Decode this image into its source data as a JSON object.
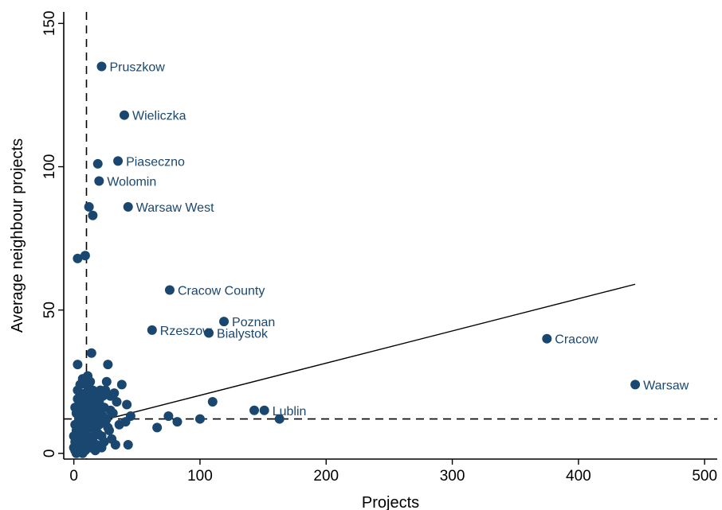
{
  "chart_data": {
    "type": "scatter",
    "title": "",
    "xlabel": "Projects",
    "ylabel": "Average neighbour projects",
    "xlim": [
      -8,
      510
    ],
    "ylim": [
      -2,
      154
    ],
    "x_ticks": [
      0,
      100,
      200,
      300,
      400,
      500
    ],
    "y_ticks": [
      0,
      50,
      100,
      150
    ],
    "grid": false,
    "marker_color": "#1a476f",
    "reference_lines": {
      "x": 10,
      "y": 12
    },
    "fit_line": {
      "x0": 0,
      "y0": 9,
      "x1": 445,
      "y1": 59
    },
    "labeled_points": [
      {
        "label": "Pruszkow",
        "x": 22,
        "y": 135
      },
      {
        "label": "Wieliczka",
        "x": 40,
        "y": 118
      },
      {
        "label": "Piaseczno",
        "x": 35,
        "y": 102
      },
      {
        "label": "Wolomin",
        "x": 20,
        "y": 95
      },
      {
        "label": "Warsaw West",
        "x": 43,
        "y": 86
      },
      {
        "label": "Cracow County",
        "x": 76,
        "y": 57
      },
      {
        "label": "Poznan",
        "x": 119,
        "y": 46
      },
      {
        "label": "Rzeszow",
        "x": 62,
        "y": 43
      },
      {
        "label": "Bialystok",
        "x": 107,
        "y": 42
      },
      {
        "label": "Cracow",
        "x": 375,
        "y": 40
      },
      {
        "label": "Warsaw",
        "x": 445,
        "y": 24
      },
      {
        "label": "Lublin",
        "x": 151,
        "y": 15
      }
    ],
    "points": [
      [
        19,
        101
      ],
      [
        12,
        86
      ],
      [
        15,
        83
      ],
      [
        3,
        68
      ],
      [
        9,
        69
      ],
      [
        3,
        31
      ],
      [
        14,
        35
      ],
      [
        27,
        31
      ],
      [
        38,
        24
      ],
      [
        42,
        17
      ],
      [
        32,
        21
      ],
      [
        26,
        25
      ],
      [
        24,
        16
      ],
      [
        29,
        15
      ],
      [
        45,
        13
      ],
      [
        41,
        11
      ],
      [
        36,
        10
      ],
      [
        33,
        3
      ],
      [
        43,
        3
      ],
      [
        66,
        9
      ],
      [
        75,
        13
      ],
      [
        82,
        11
      ],
      [
        100,
        12
      ],
      [
        110,
        18
      ],
      [
        143,
        15
      ],
      [
        163,
        12
      ],
      [
        1,
        1
      ],
      [
        2,
        3
      ],
      [
        3,
        5
      ],
      [
        4,
        7
      ],
      [
        5,
        9
      ],
      [
        6,
        11
      ],
      [
        7,
        13
      ],
      [
        8,
        15
      ],
      [
        9,
        17
      ],
      [
        10,
        19
      ],
      [
        11,
        21
      ],
      [
        12,
        23
      ],
      [
        13,
        25
      ],
      [
        2,
        8
      ],
      [
        4,
        12
      ],
      [
        6,
        16
      ],
      [
        8,
        20
      ],
      [
        10,
        24
      ],
      [
        3,
        22
      ],
      [
        5,
        18
      ],
      [
        7,
        14
      ],
      [
        9,
        10
      ],
      [
        11,
        6
      ],
      [
        13,
        2
      ],
      [
        15,
        4
      ],
      [
        17,
        8
      ],
      [
        19,
        12
      ],
      [
        21,
        16
      ],
      [
        23,
        20
      ],
      [
        25,
        22
      ],
      [
        16,
        18
      ],
      [
        18,
        14
      ],
      [
        20,
        10
      ],
      [
        22,
        6
      ],
      [
        24,
        4
      ],
      [
        14,
        12
      ],
      [
        12,
        16
      ],
      [
        10,
        9
      ],
      [
        8,
        5
      ],
      [
        6,
        2
      ],
      [
        4,
        4
      ],
      [
        2,
        14
      ],
      [
        1,
        10
      ],
      [
        0,
        6
      ],
      [
        0,
        2
      ],
      [
        1,
        16
      ],
      [
        3,
        19
      ],
      [
        5,
        24
      ],
      [
        7,
        26
      ],
      [
        9,
        26
      ],
      [
        11,
        27
      ],
      [
        15,
        22
      ],
      [
        17,
        20
      ],
      [
        19,
        19
      ],
      [
        21,
        22
      ],
      [
        26,
        12
      ],
      [
        28,
        8
      ],
      [
        30,
        5
      ],
      [
        18,
        3
      ],
      [
        16,
        6
      ],
      [
        14,
        9
      ],
      [
        12,
        11
      ],
      [
        10,
        13
      ],
      [
        8,
        11
      ],
      [
        6,
        7
      ],
      [
        4,
        1
      ],
      [
        2,
        0
      ],
      [
        7,
        0
      ],
      [
        9,
        1
      ],
      [
        11,
        3
      ],
      [
        13,
        5
      ],
      [
        15,
        14
      ],
      [
        17,
        16
      ],
      [
        20,
        18
      ],
      [
        23,
        13
      ],
      [
        27,
        9
      ],
      [
        31,
        14
      ],
      [
        34,
        18
      ],
      [
        29,
        20
      ],
      [
        25,
        11
      ],
      [
        22,
        2
      ],
      [
        19,
        7
      ],
      [
        1,
        4
      ],
      [
        3,
        9
      ],
      [
        5,
        13
      ],
      [
        7,
        17
      ],
      [
        9,
        21
      ],
      [
        11,
        17
      ],
      [
        13,
        19
      ],
      [
        15,
        11
      ],
      [
        17,
        1
      ]
    ]
  }
}
